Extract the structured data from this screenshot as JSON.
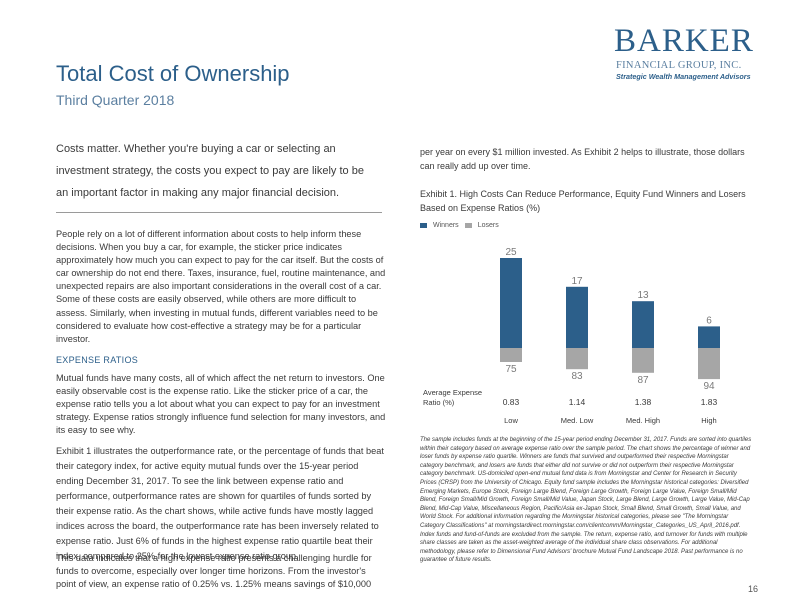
{
  "header": {
    "title": "Total Cost of Ownership",
    "subtitle": "Third Quarter 2018"
  },
  "logo": {
    "name": "BARKER",
    "sub": "FINANCIAL GROUP, INC.",
    "tagline": "Strategic Wealth Management Advisors"
  },
  "left": {
    "intro": [
      "Costs matter. Whether you're buying a car or selecting an",
      "investment strategy, the costs you expect to pay are likely to be",
      "an important factor in making any major financial decision."
    ],
    "p1": "People rely on a lot of different information about costs to help inform these decisions. When you buy a car, for example, the sticker price indicates approximately how much you can expect to pay for the car itself. But the costs of car ownership do not end there. Taxes, insurance, fuel, routine maintenance, and unexpected repairs are also important considerations in the overall cost of a car. Some of these costs are easily observed, while others are more difficult to assess. Similarly, when investing in mutual funds, different variables need to be considered to evaluate how cost-effective a strategy may be for a particular investor.",
    "section_head": "EXPENSE RATIOS",
    "p2": "Mutual funds have many costs, all of which affect the net return to investors. One easily observable cost is the expense ratio. Like the sticker price of a car, the expense ratio tells you a lot about what you can expect to pay for an investment strategy. Expense ratios strongly influence fund selection for many investors, and its easy to see why.",
    "p3": "Exhibit 1 illustrates the outperformance rate, or the percentage of funds that beat their category index, for active equity mutual funds over the 15-year period ending December 31, 2017. To see the link between expense ratio and performance, outperformance rates are shown for quartiles of funds sorted by their expense ratio. As the chart shows, while active funds have mostly lagged indices across the board, the outperformance rate has been inversely related to expense ratio. Just 6% of funds in the highest expense ratio quartile beat their index, compared to 25% for the lowest expense ratio group.",
    "p4": "This data indicates that a high expense ratio presents a challenging hurdle for funds to overcome, especially over longer time horizons. From the investor's point of view, an expense ratio of 0.25% vs. 1.25% means savings of $10,000"
  },
  "right": {
    "intro": "per year on every $1 million invested. As Exhibit 2 helps to illustrate, those dollars can really add up over time.",
    "exhibit_title": "Exhibit 1. High Costs Can Reduce Performance, Equity Fund Winners and Losers Based on Expense Ratios (%)",
    "footnote": "The sample includes funds at the beginning of the 15-year period ending December 31, 2017. Funds are sorted into quartiles within their category based on average expense ratio over the sample period. The chart shows the percentage of winner and loser funds by expense ratio quartile. Winners are funds that survived and outperformed their respective Morningstar category benchmark, and losers are funds that either did not survive or did not outperform their respective Morningstar category benchmark. US-domiciled open-end mutual fund data is from Morningstar and Center for Research in Security Prices (CRSP) from the University of Chicago. Equity fund sample includes the Morningstar historical categories: Diversified Emerging Markets, Europe Stock, Foreign Large Blend, Foreign Large Growth, Foreign Large Value, Foreign Small/Mid Blend, Foreign Small/Mid Growth, Foreign Small/Mid Value, Japan Stock, Large Blend, Large Growth, Large Value, Mid-Cap Blend, Mid-Cap Value, Miscellaneous Region, Pacific/Asia ex-Japan Stock, Small Blend, Small Growth, Small Value, and World Stock. For additional information regarding the Morningstar historical categories, please see \"The Morningstar Category Classifications\" at morningstardirect.morningstar.com/clientcomm/Morningstar_Categories_US_April_2016.pdf. Index funds and fund-of-funds are excluded from the sample. The return, expense ratio, and turnover for funds with multiple share classes are taken as the asset-weighted average of the individual share class observations. For additional methodology, please refer to Dimensional Fund Advisors' brochure Mutual Fund Landscape 2018. Past performance is no guarantee of future results.",
    "page_number": "16"
  },
  "chart_data": {
    "type": "bar",
    "categories": [
      "Low",
      "Med. Low",
      "Med. High",
      "High"
    ],
    "series": [
      {
        "name": "Winners",
        "values": [
          25,
          17,
          13,
          6
        ],
        "color": "#2c5f8a"
      },
      {
        "name": "Losers",
        "values": [
          75,
          83,
          87,
          94
        ],
        "color": "#a6a6a6"
      }
    ],
    "row_label": "Average Expense Ratio (%)",
    "expense_ratios": [
      "0.83",
      "1.14",
      "1.38",
      "1.83"
    ],
    "stacked": "winners-above-losers-below",
    "legend": "top-left"
  }
}
